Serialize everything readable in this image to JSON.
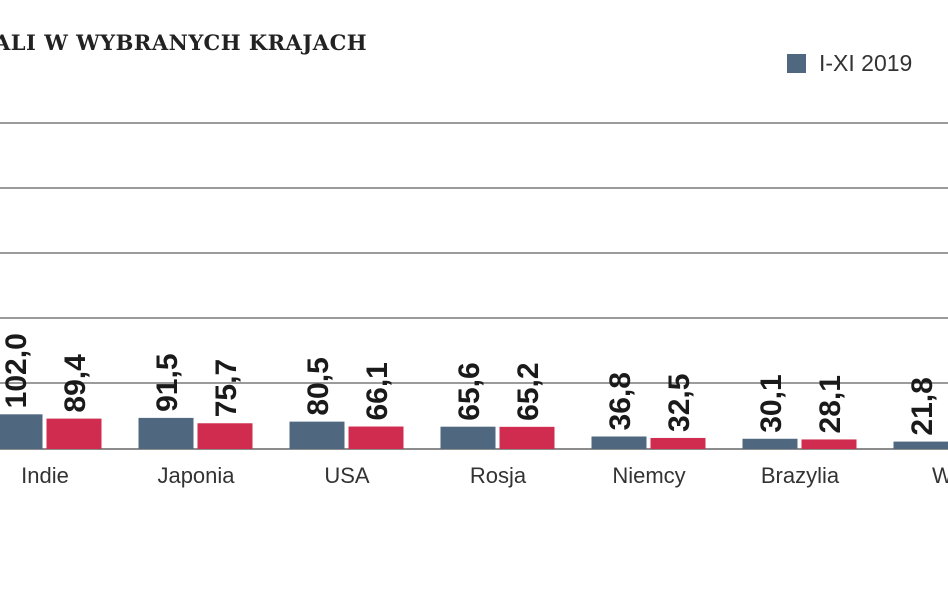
{
  "chart_data": {
    "type": "bar",
    "title": "ALI W WYBRANYCH KRAJACH",
    "categories": [
      "Indie",
      "Japonia",
      "USA",
      "Rosja",
      "Niemcy",
      "Brazylia",
      "Wło"
    ],
    "series": [
      {
        "name": "I-XI 2019",
        "color": "#4f6880",
        "values": [
          102.0,
          91.5,
          80.5,
          65.6,
          36.8,
          30.1,
          21.8
        ]
      },
      {
        "color": "#d02c4f",
        "values": [
          89.4,
          75.7,
          66.1,
          65.2,
          32.5,
          28.1,
          null
        ]
      }
    ],
    "value_labels": [
      [
        "102,0",
        "91,5",
        "80,5",
        "65,6",
        "36,8",
        "30,1",
        "21,8"
      ],
      [
        "89,4",
        "75,7",
        "66,1",
        "65,2",
        "32,5",
        "28,1",
        ""
      ]
    ],
    "grid": true,
    "legend_position": "top-right"
  }
}
